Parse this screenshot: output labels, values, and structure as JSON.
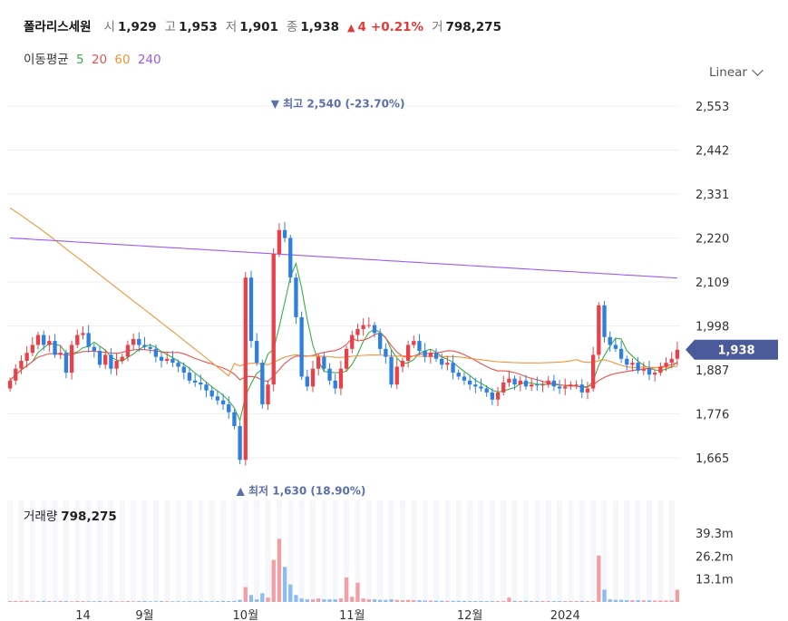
{
  "header": {
    "name": "폴라리스세원",
    "open_label": "시",
    "open": "1,929",
    "high_label": "고",
    "high": "1,953",
    "low_label": "저",
    "low": "1,901",
    "close_label": "종",
    "close": "1,938",
    "change_arrow": "▲",
    "change": "4",
    "change_pct": "+0.21%",
    "volume_label": "거",
    "volume": "798,275"
  },
  "ma_legend": {
    "label": "이동평균",
    "items": [
      {
        "period": "5",
        "color": "#3cb043"
      },
      {
        "period": "20",
        "color": "#e8534f"
      },
      {
        "period": "60",
        "color": "#f0953a"
      },
      {
        "period": "240",
        "color": "#9b59f5"
      }
    ]
  },
  "scale_selector": {
    "value": "Linear"
  },
  "volume_panel": {
    "label": "거래량",
    "value": "798,275"
  },
  "colors": {
    "up": "#e8414a",
    "down": "#2f7fe0",
    "badge": "#4a5a9a",
    "vol_up": "#f0a0a4",
    "vol_down": "#8dbcf0"
  },
  "chart_data": {
    "type": "candlestick",
    "y_ticks": [
      "2,553",
      "2,442",
      "2,331",
      "2,220",
      "2,109",
      "1,998",
      "1,887",
      "1,776",
      "1,665"
    ],
    "y_tick_values": [
      2553,
      2442,
      2331,
      2220,
      2109,
      1998,
      1887,
      1776,
      1665
    ],
    "x_labels": [
      "14",
      "9월",
      "10월",
      "11월",
      "12월",
      "2024"
    ],
    "x_label_index": [
      13,
      24,
      42,
      61,
      82,
      99
    ],
    "current_price_badge": "1,938",
    "current_price": 1938,
    "annotations": {
      "high": {
        "marker": "▼",
        "label": "최고",
        "value": 2540,
        "text": "2,540 (-23.70%)",
        "index": 47
      },
      "low": {
        "marker": "▲",
        "label": "최저",
        "value": 1630,
        "text": "1,630 (18.90%)",
        "index": 41
      }
    },
    "volume_ticks": [
      "39.3m",
      "26.2m",
      "13.1m"
    ],
    "volume_tick_values": [
      39.3,
      26.2,
      13.1
    ],
    "close": [
      1860,
      1890,
      1910,
      1930,
      1950,
      1975,
      1950,
      1960,
      1925,
      1930,
      1880,
      1950,
      1975,
      1980,
      1945,
      1935,
      1900,
      1925,
      1890,
      1910,
      1920,
      1950,
      1965,
      1950,
      1945,
      1940,
      1920,
      1910,
      1915,
      1905,
      1895,
      1880,
      1860,
      1855,
      1850,
      1835,
      1820,
      1810,
      1800,
      1780,
      1745,
      1660,
      2120,
      1960,
      1905,
      1800,
      1850,
      2180,
      2240,
      2220,
      2120,
      2020,
      1870,
      1845,
      1890,
      1920,
      1890,
      1860,
      1840,
      1890,
      1940,
      1975,
      1990,
      2000,
      2000,
      1980,
      1940,
      1920,
      1850,
      1895,
      1910,
      1950,
      1960,
      1935,
      1920,
      1930,
      1915,
      1900,
      1905,
      1880,
      1870,
      1860,
      1850,
      1845,
      1840,
      1830,
      1812,
      1830,
      1855,
      1865,
      1850,
      1860,
      1845,
      1850,
      1848,
      1850,
      1860,
      1845,
      1840,
      1845,
      1850,
      1850,
      1830,
      1840,
      1925,
      2050,
      1970,
      1950,
      1940,
      1915,
      1900,
      1905,
      1885,
      1890,
      1875,
      1880,
      1895,
      1905,
      1915,
      1938
    ],
    "volume_m": [
      0.5,
      0.6,
      0.5,
      0.7,
      0.4,
      0.5,
      0.6,
      0.5,
      0.4,
      0.6,
      0.5,
      0.4,
      0.5,
      0.5,
      0.4,
      0.4,
      0.5,
      0.4,
      0.5,
      0.4,
      0.4,
      0.5,
      0.4,
      0.5,
      0.5,
      0.4,
      0.4,
      0.5,
      0.4,
      0.4,
      0.4,
      0.4,
      0.4,
      0.4,
      0.5,
      0.4,
      0.4,
      0.5,
      0.6,
      0.5,
      0.6,
      1.2,
      8.5,
      4.0,
      1.5,
      5.0,
      2.5,
      24.0,
      36.0,
      20.0,
      10.0,
      4.0,
      2.0,
      1.5,
      1.5,
      2.0,
      1.5,
      1.5,
      1.5,
      2.0,
      14.0,
      3.0,
      11.0,
      2.0,
      1.5,
      1.5,
      1.2,
      1.2,
      1.5,
      1.2,
      1.0,
      1.2,
      1.0,
      1.0,
      0.8,
      0.8,
      0.7,
      0.7,
      0.6,
      0.6,
      0.6,
      0.6,
      0.5,
      0.5,
      0.5,
      0.5,
      0.5,
      0.5,
      0.5,
      2.5,
      0.6,
      0.5,
      0.6,
      0.5,
      0.5,
      0.6,
      0.5,
      0.5,
      0.5,
      0.5,
      0.5,
      0.5,
      0.6,
      0.5,
      0.5,
      26.5,
      7.0,
      1.5,
      1.2,
      1.2,
      1.0,
      1.0,
      1.0,
      0.9,
      0.9,
      0.8,
      0.8,
      0.8,
      0.9,
      7.0
    ]
  }
}
